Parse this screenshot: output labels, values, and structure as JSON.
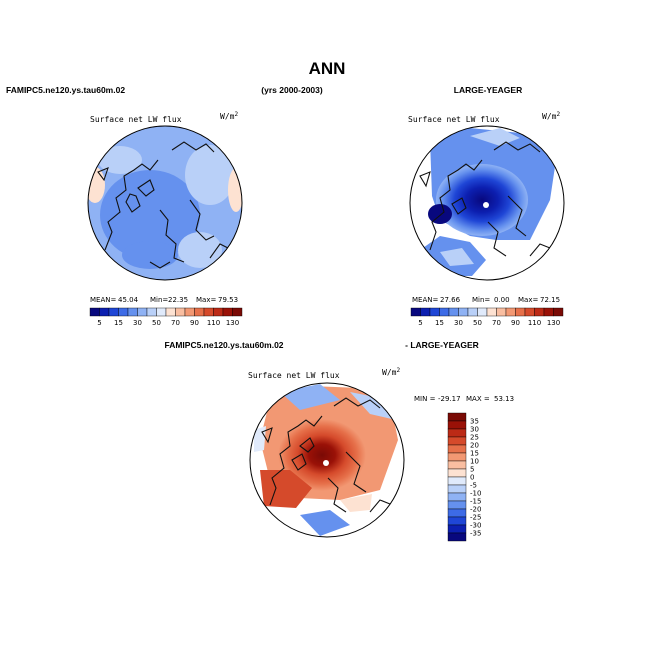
{
  "header": {
    "title": "ANN",
    "case_left": "FAMIPC5.ne120.ys.tau60m.02",
    "years": "(yrs 2000-2003)",
    "case_right": "LARGE-YEAGER",
    "diff_left": "FAMIPC5.ne120.ys.tau60m.02",
    "diff_right": "- LARGE-YEAGER"
  },
  "panels": [
    {
      "id": "model",
      "variable": "Surface net LW flux",
      "units": "W/m",
      "units_exp": "2",
      "stats": {
        "mean_label": "MEAN=",
        "mean": "45.04",
        "min_label": "Min=",
        "min": "22.35",
        "max_label": "Max=",
        "max": "79.53"
      }
    },
    {
      "id": "obs",
      "variable": "Surface net LW flux",
      "units": "W/m",
      "units_exp": "2",
      "stats": {
        "mean_label": "MEAN=",
        "mean": "27.66",
        "min_label": "Min=",
        "min": "0.00",
        "max_label": "Max=",
        "max": "72.15"
      }
    },
    {
      "id": "diff",
      "variable": "Surface net LW flux",
      "units": "W/m",
      "units_exp": "2",
      "stats": {
        "min_label": "MIN =",
        "min": "-29.17",
        "max_label": "MAX =",
        "max": "53.13"
      }
    }
  ],
  "colorbar_main": {
    "labels": [
      "5",
      "15",
      "30",
      "50",
      "70",
      "90",
      "110",
      "130"
    ],
    "colors": [
      "#08087e",
      "#0c1fb0",
      "#1f46d6",
      "#3d6be6",
      "#6591ee",
      "#8fb2f4",
      "#b9d0f8",
      "#e0eafb",
      "#fde2d2",
      "#f9bea1",
      "#f29873",
      "#e6704a",
      "#d54a2b",
      "#bc2a16",
      "#9a1107",
      "#7a0a05"
    ]
  },
  "colorbar_diff": {
    "labels": [
      "35",
      "30",
      "25",
      "20",
      "15",
      "10",
      "5",
      "0",
      "-5",
      "-10",
      "-15",
      "-20",
      "-25",
      "-30",
      "-35"
    ],
    "colors": [
      "#7a0a05",
      "#9a1107",
      "#bc2a16",
      "#d54a2b",
      "#e6704a",
      "#f29873",
      "#f9bea1",
      "#fde2d2",
      "#e0eafb",
      "#b9d0f8",
      "#8fb2f4",
      "#6591ee",
      "#3d6be6",
      "#1f46d6",
      "#0c1fb0",
      "#08087e"
    ]
  }
}
